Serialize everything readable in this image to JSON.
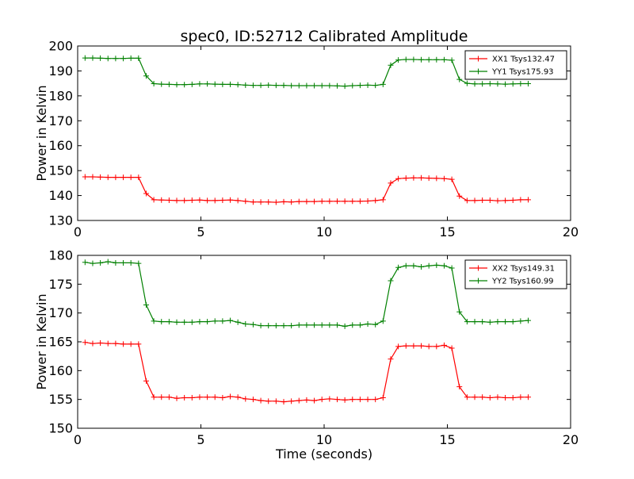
{
  "chart_data": [
    {
      "type": "line",
      "title": "spec0, ID:52712 Calibrated Amplitude",
      "xlabel": "",
      "ylabel": "Power in Kelvin",
      "xlim": [
        0,
        20
      ],
      "ylim": [
        130,
        200
      ],
      "xticks": [
        "0",
        "5",
        "10",
        "15",
        "20"
      ],
      "yticks": [
        "130",
        "140",
        "150",
        "160",
        "170",
        "180",
        "190",
        "200"
      ],
      "legend_position": "top-right",
      "x": [
        0.3,
        0.61,
        0.92,
        1.23,
        1.54,
        1.85,
        2.16,
        2.47,
        2.78,
        3.09,
        3.4,
        3.71,
        4.02,
        4.33,
        4.64,
        4.95,
        5.26,
        5.57,
        5.88,
        6.19,
        6.5,
        6.81,
        7.12,
        7.43,
        7.74,
        8.05,
        8.36,
        8.67,
        8.98,
        9.29,
        9.6,
        9.91,
        10.22,
        10.53,
        10.84,
        11.15,
        11.46,
        11.77,
        12.08,
        12.39,
        12.7,
        13.01,
        13.32,
        13.63,
        13.94,
        14.25,
        14.56,
        14.87,
        15.18,
        15.49,
        15.8,
        16.11,
        16.42,
        16.73,
        17.04,
        17.35,
        17.66,
        17.97,
        18.28
      ],
      "series": [
        {
          "name": "XX1 Tsys132.47",
          "color": "#ff0000",
          "values": [
            147.5,
            147.5,
            147.4,
            147.3,
            147.3,
            147.3,
            147.3,
            147.3,
            140.8,
            138.3,
            138.2,
            138.1,
            138.0,
            138.0,
            138.1,
            138.2,
            138.0,
            138.0,
            138.1,
            138.2,
            138.0,
            137.7,
            137.4,
            137.4,
            137.4,
            137.3,
            137.5,
            137.4,
            137.6,
            137.6,
            137.6,
            137.7,
            137.7,
            137.7,
            137.7,
            137.7,
            137.7,
            137.8,
            138.0,
            138.3,
            145.0,
            146.8,
            147.0,
            147.1,
            147.1,
            147.0,
            146.9,
            146.8,
            146.5,
            139.8,
            138.0,
            138.0,
            138.1,
            138.1,
            137.9,
            138.0,
            138.1,
            138.3,
            138.3
          ]
        },
        {
          "name": "YY1 Tsys175.93",
          "color": "#008000",
          "values": [
            195.2,
            195.2,
            195.1,
            195.0,
            195.0,
            195.0,
            195.1,
            195.1,
            188.0,
            184.9,
            184.7,
            184.6,
            184.5,
            184.5,
            184.6,
            184.8,
            184.8,
            184.7,
            184.6,
            184.6,
            184.5,
            184.3,
            184.2,
            184.2,
            184.3,
            184.2,
            184.2,
            184.1,
            184.1,
            184.1,
            184.1,
            184.1,
            184.1,
            184.0,
            183.9,
            184.1,
            184.2,
            184.3,
            184.2,
            184.6,
            192.3,
            194.4,
            194.6,
            194.6,
            194.5,
            194.5,
            194.5,
            194.5,
            194.3,
            186.6,
            185.0,
            184.8,
            184.8,
            184.9,
            184.8,
            184.7,
            184.8,
            184.9,
            184.9
          ]
        }
      ]
    },
    {
      "type": "line",
      "title": "",
      "xlabel": "Time (seconds)",
      "ylabel": "Power in Kelvin",
      "xlim": [
        0,
        20
      ],
      "ylim": [
        150,
        180
      ],
      "xticks": [
        "0",
        "5",
        "10",
        "15",
        "20"
      ],
      "yticks": [
        "150",
        "155",
        "160",
        "165",
        "170",
        "175",
        "180"
      ],
      "legend_position": "top-right",
      "x": [
        0.3,
        0.61,
        0.92,
        1.23,
        1.54,
        1.85,
        2.16,
        2.47,
        2.78,
        3.09,
        3.4,
        3.71,
        4.02,
        4.33,
        4.64,
        4.95,
        5.26,
        5.57,
        5.88,
        6.19,
        6.5,
        6.81,
        7.12,
        7.43,
        7.74,
        8.05,
        8.36,
        8.67,
        8.98,
        9.29,
        9.6,
        9.91,
        10.22,
        10.53,
        10.84,
        11.15,
        11.46,
        11.77,
        12.08,
        12.39,
        12.7,
        13.01,
        13.32,
        13.63,
        13.94,
        14.25,
        14.56,
        14.87,
        15.18,
        15.49,
        15.8,
        16.11,
        16.42,
        16.73,
        17.04,
        17.35,
        17.66,
        17.97,
        18.28
      ],
      "series": [
        {
          "name": "XX2 Tsys149.31",
          "color": "#ff0000",
          "values": [
            164.9,
            164.7,
            164.8,
            164.7,
            164.7,
            164.6,
            164.6,
            164.6,
            158.2,
            155.4,
            155.4,
            155.4,
            155.2,
            155.3,
            155.3,
            155.4,
            155.4,
            155.4,
            155.3,
            155.5,
            155.4,
            155.1,
            155.0,
            154.8,
            154.7,
            154.7,
            154.6,
            154.7,
            154.8,
            154.9,
            154.8,
            155.0,
            155.1,
            155.0,
            154.9,
            155.0,
            155.0,
            155.0,
            155.0,
            155.3,
            162.0,
            164.2,
            164.3,
            164.3,
            164.3,
            164.2,
            164.2,
            164.4,
            163.9,
            157.2,
            155.4,
            155.4,
            155.4,
            155.3,
            155.4,
            155.3,
            155.3,
            155.4,
            155.4
          ]
        },
        {
          "name": "YY2 Tsys160.99",
          "color": "#008000",
          "values": [
            178.8,
            178.6,
            178.7,
            178.9,
            178.7,
            178.7,
            178.7,
            178.6,
            171.4,
            168.6,
            168.5,
            168.5,
            168.4,
            168.4,
            168.4,
            168.5,
            168.5,
            168.6,
            168.6,
            168.7,
            168.4,
            168.1,
            168.0,
            167.8,
            167.8,
            167.8,
            167.8,
            167.8,
            167.9,
            167.9,
            167.9,
            167.9,
            167.9,
            167.9,
            167.7,
            167.9,
            167.9,
            168.1,
            168.0,
            168.6,
            175.6,
            177.9,
            178.2,
            178.2,
            178.0,
            178.2,
            178.3,
            178.2,
            177.8,
            170.2,
            168.5,
            168.5,
            168.5,
            168.4,
            168.5,
            168.5,
            168.5,
            168.6,
            168.7
          ]
        }
      ]
    }
  ]
}
